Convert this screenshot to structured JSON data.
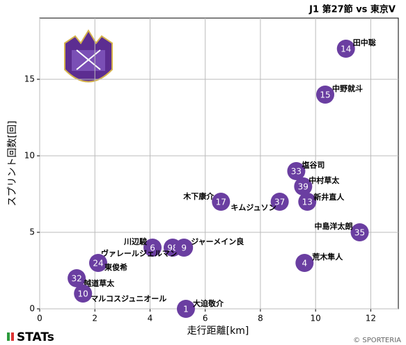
{
  "chart_data": {
    "type": "scatter",
    "title": "J1 第27節 vs 東京V",
    "xlabel": "走行距離[km]",
    "ylabel": "スプリント回数[回]",
    "xlim": [
      0,
      13
    ],
    "ylim": [
      0,
      19
    ],
    "xticks": [
      0,
      2,
      4,
      6,
      8,
      10,
      12
    ],
    "yticks": [
      0,
      5,
      10,
      15
    ],
    "grid": true,
    "color": "#6a3ea1",
    "series": [
      {
        "names": [
          "田中聡",
          "中野就斗",
          "塩谷司",
          "中村草太",
          "新井直人",
          "キムジュソン",
          "木下康介",
          "中島洋太朗",
          "川辺駿",
          "ヴァレールジェルマン",
          "ジャーメイン良",
          "荒木隼人",
          "東俊希",
          "越道草太",
          "マルコスジュニオール",
          "大迫敬介"
        ],
        "numbers": [
          14,
          15,
          33,
          39,
          13,
          37,
          17,
          35,
          6,
          98,
          9,
          4,
          24,
          32,
          10,
          1
        ],
        "x": [
          11.1,
          10.35,
          9.3,
          9.55,
          9.7,
          8.7,
          6.57,
          11.6,
          4.09,
          4.82,
          5.23,
          9.6,
          2.12,
          1.34,
          1.57,
          5.3
        ],
        "values": [
          17,
          14,
          9,
          8,
          7,
          7,
          7,
          5,
          4,
          4,
          4,
          3,
          3,
          2,
          1,
          0
        ]
      }
    ],
    "brand": "STATs",
    "copyright": "© SPORTERIA"
  }
}
